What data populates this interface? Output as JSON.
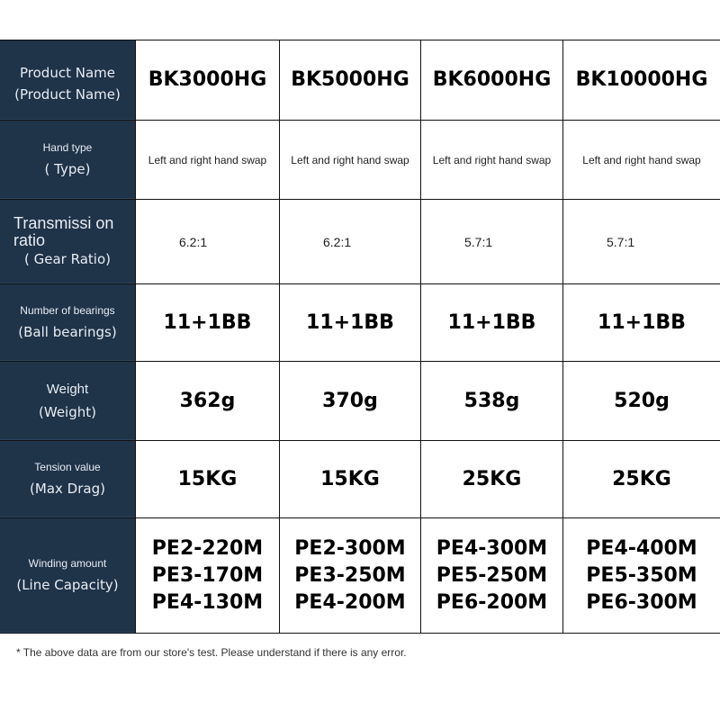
{
  "colors": {
    "header_bg": "#1f3349",
    "header_text": "#e8edf2"
  },
  "rows": [
    {
      "label": "Product Name",
      "sub": "(Product Name)",
      "values": [
        "BK3000HG",
        "BK5000HG",
        "BK6000HG",
        "BK10000HG"
      ]
    },
    {
      "label": "Hand type",
      "sub": "( Type)",
      "values": [
        "Left and right hand swap",
        "Left and right hand swap",
        "Left and right hand swap",
        "Left and right hand swap"
      ]
    },
    {
      "label": "Transmissi on ratio",
      "sub": "( Gear Ratio)",
      "values": [
        "6.2:1",
        "6.2:1",
        "5.7:1",
        "5.7:1"
      ]
    },
    {
      "label": "Number of bearings",
      "sub": "(Ball bearings)",
      "values": [
        "11+1BB",
        "11+1BB",
        "11+1BB",
        "11+1BB"
      ]
    },
    {
      "label": "Weight",
      "sub": "(Weight)",
      "values": [
        "362g",
        "370g",
        "538g",
        "520g"
      ]
    },
    {
      "label": "Tension value",
      "sub": "(Max Drag)",
      "values": [
        "15KG",
        "15KG",
        "25KG",
        "25KG"
      ]
    },
    {
      "label": "Winding amount",
      "sub": "(Line Capacity)",
      "values": [
        [
          "PE2-220M",
          "PE3-170M",
          "PE4-130M"
        ],
        [
          "PE2-300M",
          "PE3-250M",
          "PE4-200M"
        ],
        [
          "PE4-300M",
          "PE5-250M",
          "PE6-200M"
        ],
        [
          "PE4-400M",
          "PE5-350M",
          "PE6-300M"
        ]
      ]
    }
  ],
  "note": "* The above data are from our store's test. Please understand if there is any error."
}
